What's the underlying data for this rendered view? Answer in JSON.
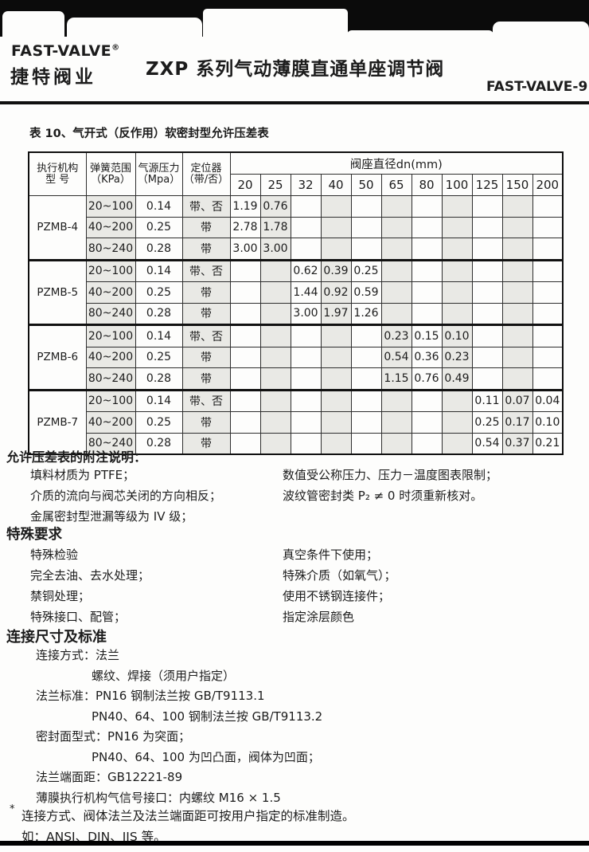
{
  "colors": {
    "cell_shade": "#e9e9e5",
    "ink": "#1c1c1c"
  },
  "header": {
    "logo_en": "FAST-VALVE",
    "logo_reg": "®",
    "logo_cn": "捷特阀业",
    "title": "ZXP 系列气动薄膜直通单座调节阀",
    "page_code": "FAST-VALVE-9"
  },
  "table": {
    "caption": "表 10、气开式（反作用）软密封型允许压差表",
    "span_header": "阀座直径dn(mm)",
    "col_headers": [
      {
        "line1": "执行机构",
        "line2": "型 号"
      },
      {
        "line1": "弹簧范围",
        "line2": "（KPa）"
      },
      {
        "line1": "气源压力",
        "line2": "（Mpa）"
      },
      {
        "line1": "定位器",
        "line2": "（带/否）"
      }
    ],
    "dn_columns": [
      "20",
      "25",
      "32",
      "40",
      "50",
      "65",
      "80",
      "100",
      "125",
      "150",
      "200"
    ],
    "groups": [
      {
        "model": "PZMB-4",
        "rows": [
          {
            "spring": "20~100",
            "pressure": "0.14",
            "positioner": "带、否",
            "values": [
              "1.19",
              "0.76",
              "",
              "",
              "",
              "",
              "",
              "",
              "",
              "",
              ""
            ]
          },
          {
            "spring": "40~200",
            "pressure": "0.25",
            "positioner": "带",
            "values": [
              "2.78",
              "1.78",
              "",
              "",
              "",
              "",
              "",
              "",
              "",
              "",
              ""
            ]
          },
          {
            "spring": "80~240",
            "pressure": "0.28",
            "positioner": "带",
            "values": [
              "3.00",
              "3.00",
              "",
              "",
              "",
              "",
              "",
              "",
              "",
              "",
              ""
            ]
          }
        ]
      },
      {
        "model": "PZMB-5",
        "rows": [
          {
            "spring": "20~100",
            "pressure": "0.14",
            "positioner": "带、否",
            "values": [
              "",
              "",
              "0.62",
              "0.39",
              "0.25",
              "",
              "",
              "",
              "",
              "",
              ""
            ]
          },
          {
            "spring": "40~200",
            "pressure": "0.25",
            "positioner": "带",
            "values": [
              "",
              "",
              "1.44",
              "0.92",
              "0.59",
              "",
              "",
              "",
              "",
              "",
              ""
            ]
          },
          {
            "spring": "80~240",
            "pressure": "0.28",
            "positioner": "带",
            "values": [
              "",
              "",
              "3.00",
              "1.97",
              "1.26",
              "",
              "",
              "",
              "",
              "",
              ""
            ]
          }
        ]
      },
      {
        "model": "PZMB-6",
        "rows": [
          {
            "spring": "20~100",
            "pressure": "0.14",
            "positioner": "带、否",
            "values": [
              "",
              "",
              "",
              "",
              "",
              "0.23",
              "0.15",
              "0.10",
              "",
              "",
              ""
            ]
          },
          {
            "spring": "40~200",
            "pressure": "0.25",
            "positioner": "带",
            "values": [
              "",
              "",
              "",
              "",
              "",
              "0.54",
              "0.36",
              "0.23",
              "",
              "",
              ""
            ]
          },
          {
            "spring": "80~240",
            "pressure": "0.28",
            "positioner": "带",
            "values": [
              "",
              "",
              "",
              "",
              "",
              "1.15",
              "0.76",
              "0.49",
              "",
              "",
              ""
            ]
          }
        ]
      },
      {
        "model": "PZMB-7",
        "rows": [
          {
            "spring": "20~100",
            "pressure": "0.14",
            "positioner": "带、否",
            "values": [
              "",
              "",
              "",
              "",
              "",
              "",
              "",
              "",
              "0.11",
              "0.07",
              "0.04"
            ]
          },
          {
            "spring": "40~200",
            "pressure": "0.25",
            "positioner": "带",
            "values": [
              "",
              "",
              "",
              "",
              "",
              "",
              "",
              "",
              "0.25",
              "0.17",
              "0.10"
            ]
          },
          {
            "spring": "80~240",
            "pressure": "0.28",
            "positioner": "带",
            "values": [
              "",
              "",
              "",
              "",
              "",
              "",
              "",
              "",
              "0.54",
              "0.37",
              "0.21"
            ]
          }
        ]
      }
    ]
  },
  "notes": {
    "heading": "允许压差表的附注说明：",
    "left": [
      "填料材质为 PTFE；",
      "介质的流向与阀芯关闭的方向相反；",
      "金属密封型泄漏等级为 IV 级；"
    ],
    "right": [
      "数值受公称压力、压力－温度图表限制；",
      "波纹管密封类 P₂ ≠ 0 时须重新核对。"
    ]
  },
  "special": {
    "heading": "特殊要求",
    "left": [
      "特殊检验",
      "完全去油、去水处理；",
      "禁铜处理；",
      "特殊接口、配管；"
    ],
    "right": [
      "真空条件下使用；",
      "特殊介质（如氧气）；",
      "使用不锈钢连接件；",
      "指定涂层颜色"
    ]
  },
  "connection": {
    "heading": "连接尺寸及标准",
    "lines": [
      {
        "indent": 1,
        "text": "连接方式：法兰"
      },
      {
        "indent": 2,
        "text": "螺纹、焊接（须用户指定）"
      },
      {
        "indent": 1,
        "text": "法兰标准：PN16 钢制法兰按 GB/T9113.1"
      },
      {
        "indent": 2,
        "text": "PN40、64、100 钢制法兰按 GB/T9113.2"
      },
      {
        "indent": 1,
        "text": "密封面型式：PN16 为突面；"
      },
      {
        "indent": 2,
        "text": "PN40、64、100 为凹凸面，阀体为凹面；"
      },
      {
        "indent": 1,
        "text": "法兰端面距：GB12221-89"
      },
      {
        "indent": 1,
        "text": "薄膜执行机构气信号接口：内螺纹 M16 × 1.5"
      }
    ],
    "footnote_mark": "*",
    "footnote1": "连接方式、阀体法兰及法兰端面距可按用户指定的标准制造。",
    "footnote2": "如：ANSI、DIN、JIS 等。"
  }
}
